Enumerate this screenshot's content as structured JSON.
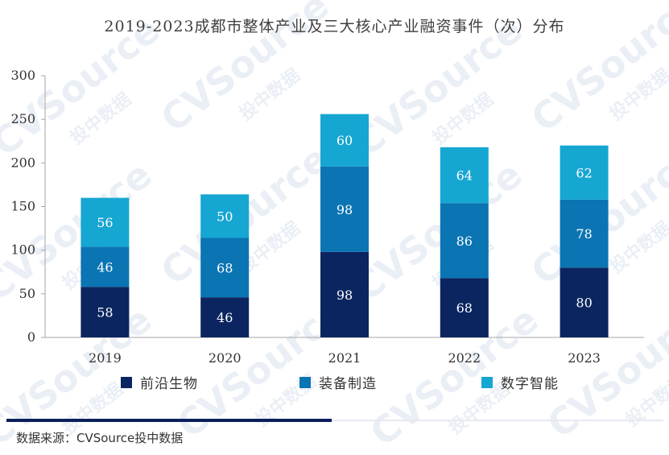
{
  "chart_data": {
    "type": "bar",
    "stacked": true,
    "title": "2019-2023成都市整体产业及三大核心产业融资事件（次）分布",
    "categories": [
      "2019",
      "2020",
      "2021",
      "2022",
      "2023"
    ],
    "series": [
      {
        "name": "前沿生物",
        "color": "#0b2560",
        "values": [
          58,
          46,
          98,
          68,
          80
        ]
      },
      {
        "name": "装备制造",
        "color": "#0b74b3",
        "values": [
          46,
          68,
          98,
          86,
          78
        ]
      },
      {
        "name": "数字智能",
        "color": "#16a6d2",
        "values": [
          56,
          50,
          60,
          64,
          62
        ]
      }
    ],
    "ylim": [
      0,
      300
    ],
    "yticks": [
      0,
      50,
      100,
      150,
      200,
      250,
      300
    ],
    "xlabel": "",
    "ylabel": "",
    "legend_position": "bottom"
  },
  "source": "数据来源：CVSource投中数据",
  "watermark": {
    "brand": "CVSource",
    "cn": "投中数据"
  },
  "colors": {
    "axis": "#a6a6a6",
    "rule": "#0a1f5c"
  }
}
